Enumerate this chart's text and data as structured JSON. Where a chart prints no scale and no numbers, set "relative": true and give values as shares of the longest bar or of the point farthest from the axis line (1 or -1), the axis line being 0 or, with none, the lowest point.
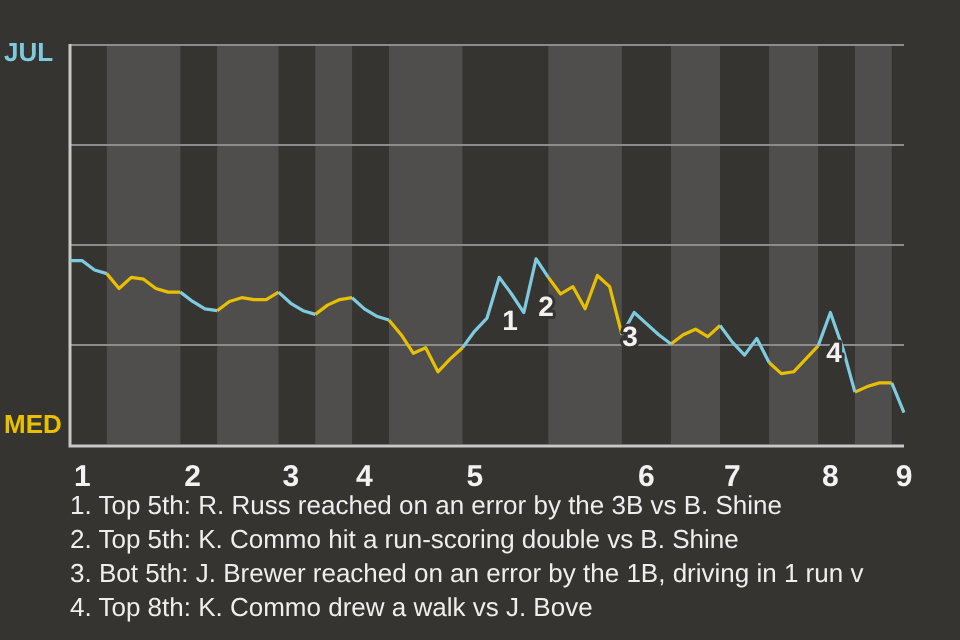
{
  "chart_data": {
    "type": "line",
    "relative": true,
    "categories": [
      null,
      "1",
      null,
      null,
      null,
      null,
      null,
      null,
      null,
      null,
      "2",
      null,
      null,
      null,
      null,
      null,
      null,
      null,
      "3",
      null,
      null,
      null,
      null,
      null,
      "4",
      null,
      null,
      null,
      null,
      null,
      null,
      null,
      null,
      "5",
      null,
      null,
      null,
      null,
      null,
      null,
      null,
      null,
      null,
      null,
      null,
      null,
      null,
      "6",
      null,
      null,
      null,
      null,
      null,
      null,
      "7",
      null,
      null,
      null,
      null,
      null,
      null,
      null,
      "8",
      null,
      null,
      null,
      null,
      null,
      "9"
    ],
    "legend": false,
    "ref_lines": [
      {
        "axis": "y",
        "value": 0.54,
        "color": "#8c8c8c"
      },
      {
        "axis": "y",
        "value": 1.08,
        "color": "#8c8c8c"
      },
      {
        "axis": "y",
        "value": 1.62,
        "color": "#8c8c8c"
      },
      {
        "axis": "y",
        "value": 2.16,
        "color": "#8c8c8c"
      }
    ],
    "series": [
      {
        "color": "#7ecbe0",
        "values": [
          0.99,
          0.99,
          0.94,
          0.92,
          null,
          null,
          null,
          null,
          null,
          0.82,
          0.77,
          0.73,
          0.72,
          null,
          null,
          null,
          null,
          0.82,
          0.76,
          0.72,
          0.7,
          null,
          null,
          0.79,
          0.73,
          0.69,
          0.67,
          null,
          null,
          null,
          null,
          null,
          0.52,
          0.61,
          0.68,
          0.9,
          0.81,
          0.71,
          1,
          0.9,
          null,
          null,
          null,
          null,
          null,
          0.59,
          0.71,
          0.65,
          0.59,
          0.54,
          null,
          null,
          null,
          0.64,
          0.55,
          0.48,
          0.57,
          0.44,
          null,
          null,
          null,
          0.53,
          0.71,
          0.52,
          0.28,
          null,
          null,
          0.33,
          0.17
        ]
      },
      {
        "color": "#e8c000",
        "values": [
          null,
          null,
          null,
          0.92,
          0.84,
          0.9,
          0.89,
          0.84,
          0.82,
          0.82,
          null,
          null,
          0.72,
          0.77,
          0.79,
          0.78,
          0.78,
          0.82,
          null,
          null,
          0.7,
          0.75,
          0.78,
          0.79,
          null,
          null,
          0.67,
          0.59,
          0.49,
          0.52,
          0.39,
          0.46,
          0.52,
          null,
          null,
          null,
          null,
          null,
          null,
          0.9,
          0.81,
          0.85,
          0.73,
          0.91,
          0.85,
          0.59,
          null,
          null,
          null,
          0.54,
          0.59,
          0.62,
          0.58,
          0.64,
          null,
          null,
          null,
          0.44,
          0.38,
          0.39,
          0.46,
          0.53,
          null,
          null,
          0.28,
          0.31,
          0.33,
          0.33,
          null
        ]
      }
    ],
    "annotations": [
      "JUL",
      "MED",
      "1",
      "2",
      "3",
      "4",
      "1. Top 5th: R. Russ reached on an error by the 3B vs B. Shine",
      "2. Top 5th: K. Commo hit a run-scoring double vs B. Shine",
      "3. Bot 5th: J. Brewer reached on an error by the 1B, driving in 1 run v",
      "4. Top 8th: K. Commo drew a walk vs J. Bove"
    ]
  }
}
